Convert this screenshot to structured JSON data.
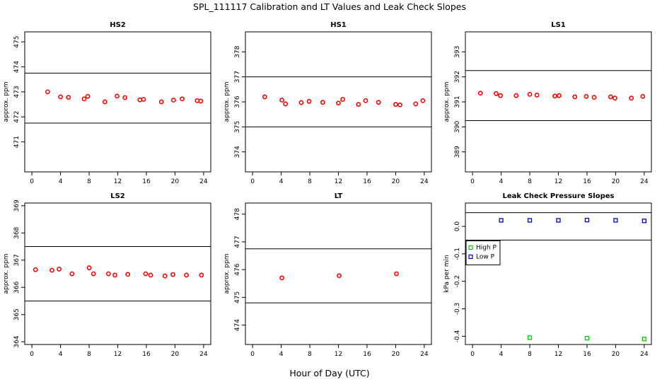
{
  "figure": {
    "title": "SPL_111117  Calibration and LT Values and Leak Check Slopes",
    "xlabel": "Hour of Day (UTC)"
  },
  "chart_data": [
    {
      "type": "scatter",
      "title": "HS2",
      "ylabel": "approx. ppm",
      "xlim": [
        -1,
        25
      ],
      "ylim": [
        469.8,
        475.4
      ],
      "xticks": [
        0,
        4,
        8,
        12,
        16,
        20,
        24
      ],
      "yticks": [
        471,
        472,
        473,
        474,
        475
      ],
      "hlines": [
        473.75,
        471.75
      ],
      "series": [
        {
          "color": "#ff0000",
          "marker": "circle",
          "x": [
            2.2,
            4,
            5.1,
            7.3,
            7.8,
            10.2,
            11.9,
            13,
            15.1,
            15.6,
            18.1,
            19.8,
            21,
            23.1,
            23.6
          ],
          "y": [
            473.0,
            472.8,
            472.78,
            472.72,
            472.82,
            472.6,
            472.83,
            472.77,
            472.68,
            472.7,
            472.6,
            472.67,
            472.72,
            472.65,
            472.63
          ]
        }
      ]
    },
    {
      "type": "scatter",
      "title": "HS1",
      "ylabel": "approx. ppm",
      "xlim": [
        -1,
        25
      ],
      "ylim": [
        373.2,
        378.8
      ],
      "xticks": [
        0,
        4,
        8,
        12,
        16,
        20,
        24
      ],
      "yticks": [
        374,
        375,
        376,
        377,
        378
      ],
      "hlines": [
        377.0,
        375.0
      ],
      "series": [
        {
          "color": "#ff0000",
          "marker": "circle",
          "x": [
            1.7,
            4.1,
            4.6,
            6.8,
            7.9,
            9.8,
            12,
            12.6,
            14.8,
            15.8,
            17.6,
            20,
            20.6,
            22.8,
            23.8
          ],
          "y": [
            376.2,
            376.07,
            375.92,
            375.97,
            376.02,
            375.98,
            375.95,
            376.1,
            375.9,
            376.05,
            375.98,
            375.9,
            375.88,
            375.92,
            376.05
          ]
        }
      ]
    },
    {
      "type": "scatter",
      "title": "LS1",
      "ylabel": "approx. ppm",
      "xlim": [
        -1,
        25
      ],
      "ylim": [
        388.2,
        393.8
      ],
      "xticks": [
        0,
        4,
        8,
        12,
        16,
        20,
        24
      ],
      "yticks": [
        389,
        390,
        391,
        392,
        393
      ],
      "hlines": [
        392.25,
        390.25
      ],
      "series": [
        {
          "color": "#ff0000",
          "marker": "circle",
          "x": [
            1.1,
            3.3,
            3.9,
            6.1,
            8,
            9,
            11.5,
            12.1,
            14.3,
            15.9,
            17,
            19.3,
            19.9,
            22.2,
            23.8
          ],
          "y": [
            391.35,
            391.33,
            391.25,
            391.25,
            391.3,
            391.27,
            391.23,
            391.25,
            391.2,
            391.22,
            391.18,
            391.2,
            391.15,
            391.15,
            391.22
          ]
        }
      ]
    },
    {
      "type": "scatter",
      "title": "LS2",
      "ylabel": "approx. ppm",
      "xlim": [
        -1,
        25
      ],
      "ylim": [
        363.9,
        369.1
      ],
      "xticks": [
        0,
        4,
        8,
        12,
        16,
        20,
        24
      ],
      "yticks": [
        364,
        365,
        366,
        367,
        368,
        369
      ],
      "hlines": [
        367.5,
        365.5
      ],
      "series": [
        {
          "color": "#ff0000",
          "marker": "circle",
          "x": [
            0.5,
            2.8,
            3.8,
            5.6,
            8,
            8.6,
            10.7,
            11.6,
            13.4,
            15.9,
            16.6,
            18.6,
            19.7,
            21.6,
            23.7
          ],
          "y": [
            366.65,
            366.63,
            366.67,
            366.5,
            366.72,
            366.5,
            366.5,
            366.45,
            366.48,
            366.5,
            366.45,
            366.42,
            366.47,
            366.45,
            366.45
          ]
        }
      ]
    },
    {
      "type": "scatter",
      "title": "LT",
      "ylabel": "approx. ppm",
      "xlim": [
        -1,
        25
      ],
      "ylim": [
        473.3,
        478.4
      ],
      "xticks": [
        0,
        4,
        8,
        12,
        16,
        20,
        24
      ],
      "yticks": [
        474,
        475,
        476,
        477,
        478
      ],
      "hlines": [
        476.75,
        474.8
      ],
      "series": [
        {
          "color": "#ff0000",
          "marker": "circle",
          "x": [
            4.1,
            12.1,
            20.1
          ],
          "y": [
            475.7,
            475.78,
            475.85
          ]
        }
      ]
    },
    {
      "type": "scatter",
      "title": "Leak Check Pressure Slopes",
      "ylabel": "kPa per min",
      "xlim": [
        -1,
        25
      ],
      "ylim": [
        -0.43,
        0.085
      ],
      "xticks": [
        0,
        4,
        8,
        12,
        16,
        20,
        24
      ],
      "yticks": [
        0.0,
        -0.1,
        -0.2,
        -0.3,
        -0.4
      ],
      "hlines": [
        0.05,
        -0.05
      ],
      "legend": "left",
      "series": [
        {
          "name": "High P",
          "color": "#00cc00",
          "marker": "square",
          "x": [
            8,
            16,
            24
          ],
          "y": [
            -0.405,
            -0.407,
            -0.41
          ]
        },
        {
          "name": "Low P",
          "color": "#0000cc",
          "marker": "square",
          "x": [
            4,
            8,
            12,
            16,
            20,
            24
          ],
          "y": [
            0.022,
            0.022,
            0.022,
            0.023,
            0.022,
            0.02
          ]
        }
      ]
    }
  ]
}
